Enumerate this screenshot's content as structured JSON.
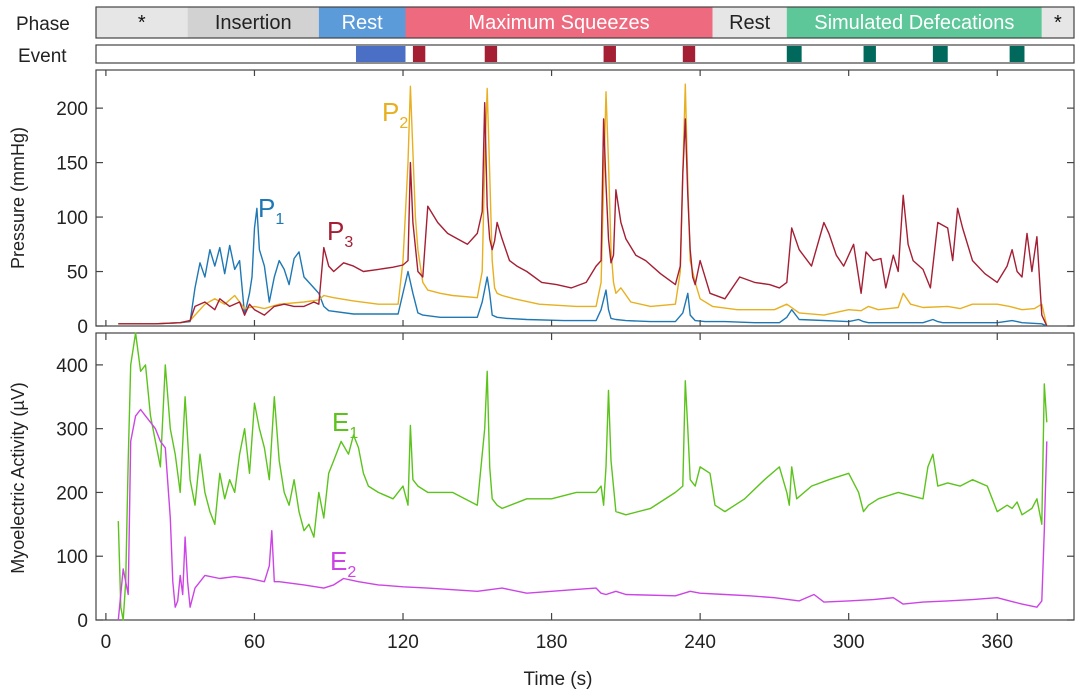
{
  "chart_data": [
    {
      "type": "timeline",
      "row_labels": {
        "phase": "Phase",
        "event": "Event"
      },
      "phases": [
        {
          "label": "*",
          "start": -8,
          "end": 33,
          "color": "#e6e6e6",
          "text_color": "#111111"
        },
        {
          "label": "Insertion",
          "start": 33,
          "end": 86,
          "color": "#d2d2d2",
          "text_color": "#222222"
        },
        {
          "label": "Rest",
          "start": 86,
          "end": 121,
          "color": "#5b9bd9",
          "text_color": "#ffffff"
        },
        {
          "label": "Maximum Squeezes",
          "start": 121,
          "end": 245,
          "color": "#ee6a7f",
          "text_color": "#ffffff"
        },
        {
          "label": "Rest",
          "start": 245,
          "end": 275,
          "color": "#e6e6e6",
          "text_color": "#222222"
        },
        {
          "label": "Simulated Defecations",
          "start": 275,
          "end": 378,
          "color": "#5dc79a",
          "text_color": "#ffffff"
        },
        {
          "label": "*",
          "start": 378,
          "end": 391,
          "color": "#e6e6e6",
          "text_color": "#111111"
        }
      ],
      "events": [
        {
          "start": 101,
          "end": 121,
          "color": "#4a6fc4"
        },
        {
          "start": 124,
          "end": 129,
          "color": "#a51f34"
        },
        {
          "start": 153,
          "end": 158,
          "color": "#a51f34"
        },
        {
          "start": 201,
          "end": 206,
          "color": "#a51f34"
        },
        {
          "start": 233,
          "end": 238,
          "color": "#a51f34"
        },
        {
          "start": 275,
          "end": 281,
          "color": "#00695c"
        },
        {
          "start": 306,
          "end": 311,
          "color": "#00695c"
        },
        {
          "start": 334,
          "end": 340,
          "color": "#00695c"
        },
        {
          "start": 365,
          "end": 371,
          "color": "#00695c"
        }
      ]
    },
    {
      "type": "line",
      "ylabel": "Pressure (mmHg)",
      "xlim": [
        -4,
        391
      ],
      "ylim": [
        0,
        235
      ],
      "yticks": [
        0,
        50,
        100,
        150,
        200
      ],
      "series": [
        {
          "name": "P",
          "sub": "1",
          "color": "#1f78b4",
          "x": [
            5,
            20,
            30,
            34,
            36,
            38,
            40,
            42,
            44,
            46,
            48,
            50,
            52,
            54,
            56,
            58,
            59,
            60,
            61,
            62,
            64,
            66,
            68,
            70,
            72,
            74,
            76,
            78,
            80,
            82,
            84,
            86,
            88,
            90,
            100,
            110,
            118,
            122,
            124,
            126,
            128,
            135,
            150,
            152,
            154,
            155,
            156,
            158,
            162,
            170,
            185,
            198,
            200,
            202,
            203,
            204,
            206,
            210,
            220,
            230,
            233,
            235,
            236,
            238,
            242,
            250,
            262,
            272,
            275,
            277,
            280,
            300,
            304,
            306,
            308,
            330,
            334,
            336,
            338,
            360,
            366,
            368,
            370,
            378,
            380
          ],
          "y": [
            2,
            2,
            3,
            4,
            35,
            58,
            45,
            70,
            55,
            72,
            48,
            74,
            52,
            60,
            10,
            30,
            45,
            90,
            108,
            70,
            55,
            22,
            45,
            60,
            52,
            38,
            62,
            68,
            45,
            40,
            35,
            30,
            18,
            14,
            11,
            11,
            11,
            50,
            30,
            12,
            10,
            8,
            8,
            22,
            45,
            30,
            10,
            8,
            7,
            6,
            5,
            5,
            15,
            33,
            15,
            7,
            6,
            5,
            4,
            4,
            12,
            30,
            10,
            5,
            4,
            4,
            3,
            3,
            8,
            15,
            6,
            4,
            6,
            4,
            3,
            3,
            6,
            4,
            3,
            3,
            5,
            4,
            3,
            2,
            0
          ]
        },
        {
          "name": "P",
          "sub": "2",
          "color": "#e8b020",
          "x": [
            5,
            20,
            30,
            34,
            36,
            40,
            44,
            48,
            52,
            56,
            60,
            64,
            70,
            80,
            86,
            88,
            92,
            100,
            110,
            118,
            120,
            122,
            123,
            124,
            125,
            126,
            128,
            130,
            135,
            140,
            150,
            152,
            153,
            154,
            155,
            156,
            157,
            158,
            160,
            165,
            175,
            190,
            198,
            200,
            201,
            202,
            203,
            204,
            205,
            206,
            208,
            212,
            220,
            230,
            232,
            233,
            234,
            235,
            236,
            238,
            240,
            245,
            255,
            270,
            275,
            280,
            290,
            300,
            305,
            308,
            312,
            320,
            322,
            325,
            330,
            340,
            345,
            350,
            360,
            365,
            370,
            375,
            378,
            380
          ],
          "y": [
            2,
            2,
            3,
            5,
            10,
            20,
            25,
            20,
            28,
            16,
            18,
            16,
            20,
            22,
            24,
            28,
            26,
            23,
            20,
            20,
            60,
            150,
            220,
            160,
            100,
            70,
            40,
            33,
            30,
            28,
            26,
            50,
            150,
            218,
            140,
            60,
            35,
            30,
            28,
            25,
            20,
            18,
            18,
            40,
            130,
            215,
            150,
            70,
            40,
            30,
            35,
            22,
            18,
            20,
            50,
            140,
            222,
            130,
            60,
            40,
            25,
            18,
            15,
            15,
            20,
            12,
            10,
            15,
            14,
            18,
            15,
            17,
            30,
            20,
            17,
            18,
            16,
            20,
            20,
            18,
            15,
            16,
            20,
            0
          ]
        },
        {
          "name": "P",
          "sub": "3",
          "color": "#a51f34",
          "x": [
            5,
            20,
            30,
            34,
            36,
            40,
            44,
            46,
            50,
            54,
            56,
            58,
            60,
            64,
            68,
            72,
            76,
            80,
            84,
            86,
            88,
            90,
            92,
            96,
            100,
            104,
            110,
            116,
            120,
            122,
            123,
            124,
            126,
            128,
            130,
            134,
            138,
            142,
            146,
            150,
            152,
            153,
            154,
            155,
            156,
            157,
            158,
            160,
            163,
            166,
            170,
            176,
            182,
            188,
            194,
            198,
            200,
            201,
            202,
            203,
            204,
            205,
            206,
            208,
            210,
            214,
            218,
            224,
            230,
            232,
            233,
            234,
            235,
            236,
            237,
            238,
            240,
            244,
            250,
            256,
            262,
            268,
            272,
            275,
            277,
            280,
            285,
            290,
            292,
            295,
            298,
            302,
            305,
            307,
            310,
            313,
            315,
            318,
            320,
            322,
            324,
            326,
            330,
            333,
            336,
            340,
            342,
            344,
            346,
            350,
            355,
            360,
            364,
            366,
            368,
            370,
            372,
            374,
            376,
            378,
            380
          ],
          "y": [
            2,
            2,
            3,
            5,
            18,
            22,
            15,
            25,
            18,
            22,
            10,
            20,
            15,
            10,
            18,
            20,
            18,
            18,
            22,
            20,
            72,
            55,
            50,
            58,
            55,
            50,
            52,
            54,
            56,
            60,
            150,
            95,
            50,
            45,
            110,
            95,
            85,
            80,
            75,
            85,
            105,
            205,
            110,
            80,
            70,
            78,
            95,
            80,
            60,
            55,
            50,
            40,
            38,
            35,
            40,
            55,
            60,
            190,
            130,
            80,
            58,
            65,
            125,
            95,
            80,
            65,
            60,
            48,
            38,
            55,
            140,
            190,
            120,
            70,
            45,
            38,
            60,
            30,
            25,
            45,
            40,
            38,
            35,
            40,
            90,
            70,
            55,
            95,
            85,
            65,
            55,
            75,
            30,
            68,
            60,
            62,
            35,
            65,
            50,
            120,
            75,
            60,
            52,
            35,
            95,
            90,
            60,
            108,
            90,
            60,
            48,
            40,
            55,
            70,
            50,
            45,
            85,
            50,
            82,
            10,
            0
          ]
        }
      ]
    },
    {
      "type": "line",
      "ylabel": "Myoelectric  Activity (µV)",
      "xlabel": "Time (s)",
      "xlim": [
        -4,
        391
      ],
      "ylim": [
        0,
        450
      ],
      "yticks": [
        0,
        100,
        200,
        300,
        400
      ],
      "xticks": [
        0,
        60,
        120,
        180,
        240,
        300,
        360
      ],
      "series": [
        {
          "name": "E",
          "sub": "1",
          "color": "#5cc31d",
          "x": [
            5,
            6,
            7,
            8,
            9,
            10,
            12,
            14,
            16,
            18,
            20,
            22,
            24,
            26,
            28,
            30,
            32,
            34,
            36,
            38,
            40,
            42,
            44,
            46,
            48,
            50,
            52,
            54,
            56,
            58,
            60,
            62,
            64,
            66,
            68,
            70,
            72,
            74,
            76,
            78,
            80,
            82,
            84,
            86,
            88,
            90,
            92,
            95,
            98,
            100,
            102,
            104,
            106,
            110,
            116,
            120,
            122,
            123,
            124,
            126,
            130,
            140,
            150,
            153,
            154,
            155,
            156,
            158,
            160,
            170,
            180,
            190,
            198,
            200,
            201,
            202,
            203,
            204,
            206,
            210,
            220,
            230,
            233,
            234,
            235,
            236,
            238,
            240,
            244,
            246,
            250,
            258,
            266,
            272,
            275,
            276,
            277,
            279,
            285,
            292,
            300,
            304,
            306,
            308,
            312,
            320,
            330,
            332,
            334,
            336,
            340,
            345,
            350,
            356,
            360,
            364,
            366,
            368,
            370,
            374,
            376,
            378,
            379,
            380
          ],
          "y": [
            155,
            20,
            0,
            60,
            250,
            400,
            450,
            390,
            400,
            320,
            280,
            240,
            400,
            300,
            260,
            200,
            350,
            220,
            180,
            260,
            200,
            170,
            150,
            230,
            190,
            220,
            200,
            260,
            300,
            230,
            340,
            300,
            270,
            220,
            350,
            250,
            200,
            180,
            220,
            170,
            140,
            150,
            130,
            200,
            160,
            230,
            250,
            280,
            260,
            290,
            270,
            230,
            210,
            200,
            190,
            210,
            180,
            305,
            220,
            210,
            200,
            200,
            180,
            300,
            390,
            240,
            190,
            180,
            175,
            190,
            190,
            200,
            200,
            210,
            180,
            240,
            360,
            250,
            170,
            165,
            175,
            200,
            210,
            375,
            300,
            220,
            210,
            240,
            230,
            180,
            170,
            190,
            220,
            240,
            200,
            180,
            240,
            190,
            210,
            220,
            230,
            200,
            170,
            180,
            190,
            200,
            190,
            240,
            260,
            210,
            215,
            210,
            220,
            210,
            170,
            180,
            175,
            185,
            165,
            175,
            190,
            150,
            370,
            310
          ]
        },
        {
          "name": "E",
          "sub": "2",
          "color": "#cc44e6",
          "x": [
            5,
            7,
            9,
            10,
            12,
            14,
            16,
            18,
            20,
            22,
            24,
            26,
            27,
            28,
            29,
            30,
            31,
            32,
            33,
            34,
            36,
            40,
            46,
            52,
            58,
            64,
            66,
            67,
            68,
            70,
            80,
            88,
            92,
            96,
            102,
            110,
            120,
            130,
            150,
            160,
            170,
            180,
            190,
            198,
            200,
            202,
            206,
            210,
            230,
            236,
            240,
            250,
            260,
            270,
            280,
            286,
            290,
            300,
            310,
            318,
            322,
            330,
            340,
            350,
            360,
            365,
            370,
            376,
            378,
            379,
            380
          ],
          "y": [
            0,
            80,
            40,
            280,
            320,
            330,
            320,
            310,
            300,
            280,
            270,
            160,
            60,
            20,
            30,
            70,
            40,
            130,
            60,
            20,
            50,
            70,
            65,
            68,
            65,
            60,
            85,
            140,
            60,
            60,
            55,
            50,
            55,
            65,
            60,
            55,
            52,
            50,
            45,
            50,
            42,
            45,
            48,
            50,
            42,
            40,
            45,
            40,
            38,
            45,
            42,
            40,
            38,
            35,
            30,
            40,
            28,
            30,
            32,
            35,
            25,
            28,
            30,
            32,
            35,
            30,
            25,
            20,
            30,
            140,
            280
          ]
        }
      ]
    }
  ]
}
